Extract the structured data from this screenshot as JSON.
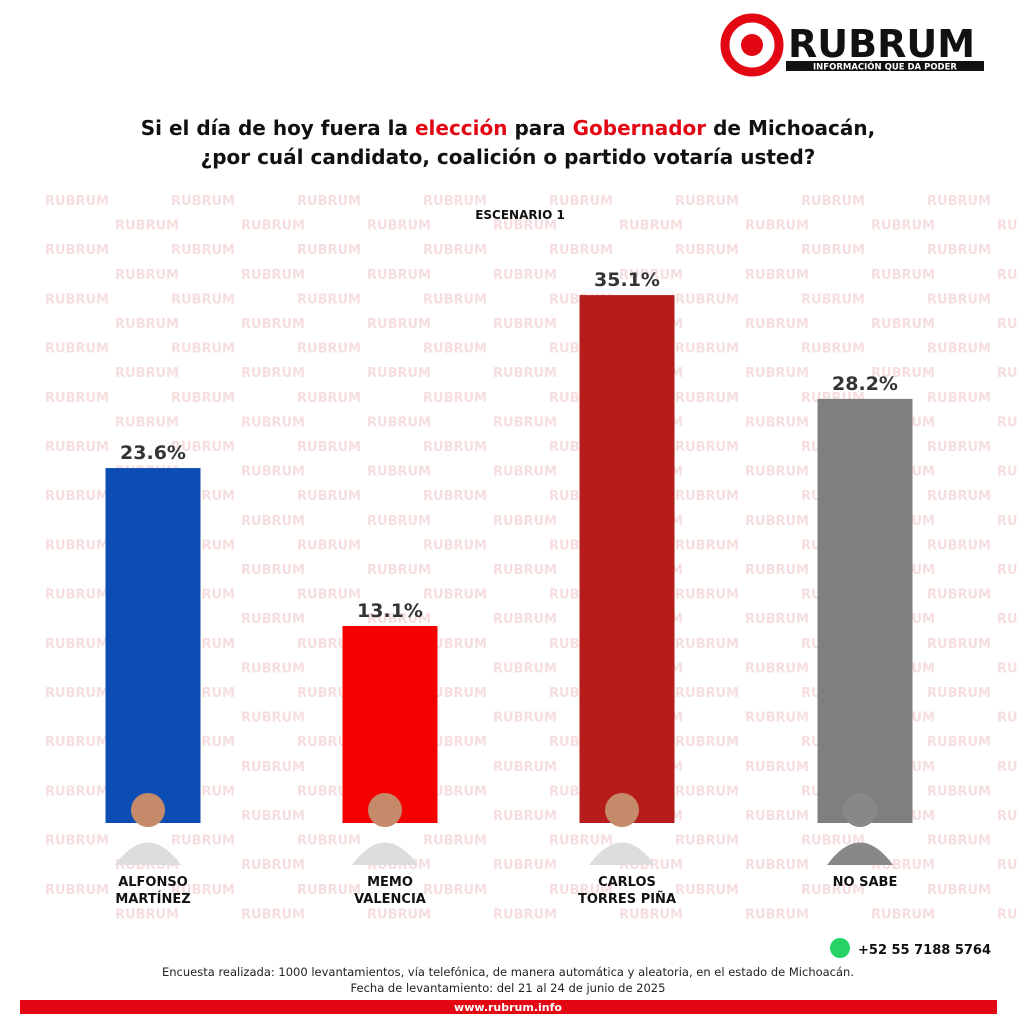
{
  "brand": {
    "name": "RUBRUM",
    "tagline": "INFORMACIÓN QUE DA PODER",
    "phone": "+52 55 7188 5764",
    "website": "www.rubrum.info"
  },
  "chart_data": {
    "type": "bar",
    "title_segments": [
      {
        "text": "Si el día de hoy fuera la "
      },
      {
        "text": "elección",
        "color": "#e30613"
      },
      {
        "text": " para "
      },
      {
        "text": "Gobernador",
        "color": "#e30613"
      },
      {
        "text": " de Michoacán,"
      }
    ],
    "title_segments_2": [
      {
        "text": "¿por cuál candidato, coalición o partido votaría usted?"
      }
    ],
    "subtitle": "ESCENARIO 1",
    "categories": [
      "ALFONSO\nMARTÍNEZ",
      "MEMO\nVALENCIA",
      "CARLOS\nTORRES PIÑA",
      "NO SABE"
    ],
    "values": [
      23.6,
      13.1,
      35.1,
      28.2
    ],
    "value_labels": [
      "23.6%",
      "13.1%",
      "35.1%",
      "28.2%"
    ],
    "colors": [
      "#0c4db3",
      "#f40000",
      "#b61c1a",
      "#7f7f7f"
    ],
    "notes": [
      "Encuesta realizada: 1000 levantamientos, vía telefónica, de manera automática y aleatoria, en el estado de Michoacán.",
      "Fecha de levantamiento: del 21 al 24 de junio de 2025"
    ]
  }
}
